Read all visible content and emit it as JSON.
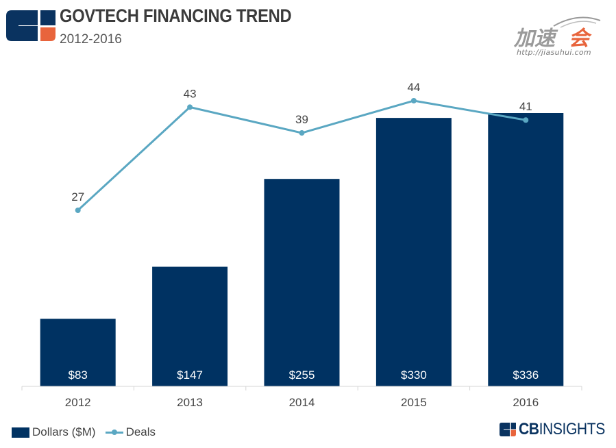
{
  "header": {
    "title": "GOVTECH FINANCING TREND",
    "subtitle": "2012-2016"
  },
  "watermark": {
    "url": "http://jiasuhui.com"
  },
  "legend": {
    "bar_label": "Dollars ($M)",
    "line_label": "Deals"
  },
  "brand": {
    "bold": "CB",
    "light": "INSIGHTS"
  },
  "colors": {
    "bar": "#003262",
    "line": "#5aa7c2",
    "logo_orange": "#e8643c",
    "logo_navy": "#0a3360"
  },
  "chart_data": {
    "type": "bar",
    "categories": [
      "2012",
      "2013",
      "2014",
      "2015",
      "2016"
    ],
    "series": [
      {
        "name": "Dollars ($M)",
        "type": "bar",
        "axis": "left",
        "values": [
          83,
          147,
          255,
          330,
          336
        ],
        "labels": [
          "$83",
          "$147",
          "$255",
          "$330",
          "$336"
        ],
        "label_position": "inside-bottom"
      },
      {
        "name": "Deals",
        "type": "line",
        "axis": "right",
        "values": [
          27,
          43,
          39,
          44,
          41
        ],
        "labels": [
          "27",
          "43",
          "39",
          "44",
          "41"
        ],
        "label_position": "above"
      }
    ],
    "y_left_range": [
      0,
      336
    ],
    "y_right_range": [
      0,
      44
    ],
    "grid": false,
    "legend_position": "bottom-left"
  }
}
